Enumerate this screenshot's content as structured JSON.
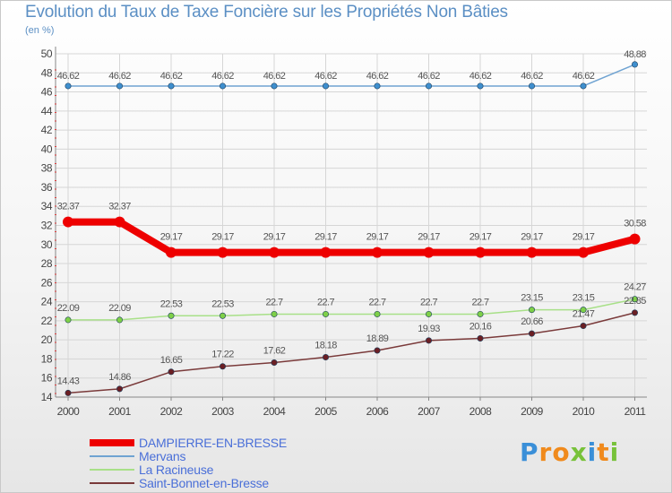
{
  "chart_data": {
    "type": "line",
    "title": "Evolution du Taux de Taxe Foncière sur les Propriétés Non Bâties",
    "unit_label": "(en %)",
    "xlabel": "",
    "ylabel": "",
    "categories": [
      "2000",
      "2001",
      "2002",
      "2003",
      "2004",
      "2005",
      "2006",
      "2007",
      "2008",
      "2009",
      "2010",
      "2011"
    ],
    "ylim": [
      14,
      50
    ],
    "yticks": [
      14,
      16,
      18,
      20,
      22,
      24,
      26,
      28,
      30,
      32,
      34,
      36,
      38,
      40,
      42,
      44,
      46,
      48,
      50
    ],
    "grid": true,
    "legend_position": "bottom-left",
    "series": [
      {
        "name": "Mervans",
        "color": "#6fa3d2",
        "marker_color": "#3f8fce",
        "label_color": "#555555",
        "values": [
          46.62,
          46.62,
          46.62,
          46.62,
          46.62,
          46.62,
          46.62,
          46.62,
          46.62,
          46.62,
          46.62,
          48.88
        ],
        "labels": [
          "46.62",
          "46.62",
          "46.62",
          "46.62",
          "46.62",
          "46.62",
          "46.62",
          "46.62",
          "46.62",
          "46.62",
          "46.62",
          "48.88"
        ]
      },
      {
        "name": "DAMPIERRE-EN-BRESSE",
        "color": "#ee0000",
        "marker_color": "#ee0000",
        "label_color": "#555555",
        "values": [
          32.37,
          32.37,
          29.17,
          29.17,
          29.17,
          29.17,
          29.17,
          29.17,
          29.17,
          29.17,
          29.17,
          30.58
        ],
        "labels": [
          "32.37",
          "32.37",
          "29.17",
          "29.17",
          "29.17",
          "29.17",
          "29.17",
          "29.17",
          "29.17",
          "29.17",
          "29.17",
          "30.58"
        ]
      },
      {
        "name": "La Racineuse",
        "color": "#a8e088",
        "marker_color": "#7ed048",
        "label_color": "#555555",
        "values": [
          22.09,
          22.09,
          22.53,
          22.53,
          22.7,
          22.7,
          22.7,
          22.7,
          22.7,
          23.15,
          23.15,
          24.27
        ],
        "labels": [
          "22.09",
          "22.09",
          "22.53",
          "22.53",
          "22.7",
          "22.7",
          "22.7",
          "22.7",
          "22.7",
          "23.15",
          "23.15",
          "24.27"
        ]
      },
      {
        "name": "Saint-Bonnet-en-Bresse",
        "color": "#7a3a3a",
        "marker_color": "#6b1f24",
        "label_color": "#555555",
        "values": [
          14.43,
          14.86,
          16.65,
          17.22,
          17.62,
          18.18,
          18.89,
          19.93,
          20.16,
          20.66,
          21.47,
          22.85
        ],
        "labels": [
          "14.43",
          "14.86",
          "16.65",
          "17.22",
          "17.62",
          "18.18",
          "18.89",
          "19.93",
          "20.16",
          "20.66",
          "21.47",
          "22.85"
        ]
      }
    ]
  },
  "legend": [
    {
      "label": "DAMPIERRE-EN-BRESSE",
      "color": "#ee0000",
      "thickness": 8
    },
    {
      "label": "Mervans",
      "color": "#6fa3d2",
      "thickness": 2
    },
    {
      "label": "La Racineuse",
      "color": "#a8e088",
      "thickness": 2
    },
    {
      "label": "Saint-Bonnet-en-Bresse",
      "color": "#7a3a3a",
      "thickness": 2
    }
  ],
  "logo": {
    "text": "Proxiti",
    "letters": [
      {
        "ch": "P",
        "color": "#3a8fd8"
      },
      {
        "ch": "r",
        "color": "#f08a1c"
      },
      {
        "ch": "o",
        "color": "#f08a1c"
      },
      {
        "ch": "x",
        "color": "#78c23a"
      },
      {
        "ch": "i",
        "color": "#3a8fd8"
      },
      {
        "ch": "t",
        "color": "#f08a1c"
      },
      {
        "ch": "i",
        "color": "#78c23a"
      }
    ]
  }
}
